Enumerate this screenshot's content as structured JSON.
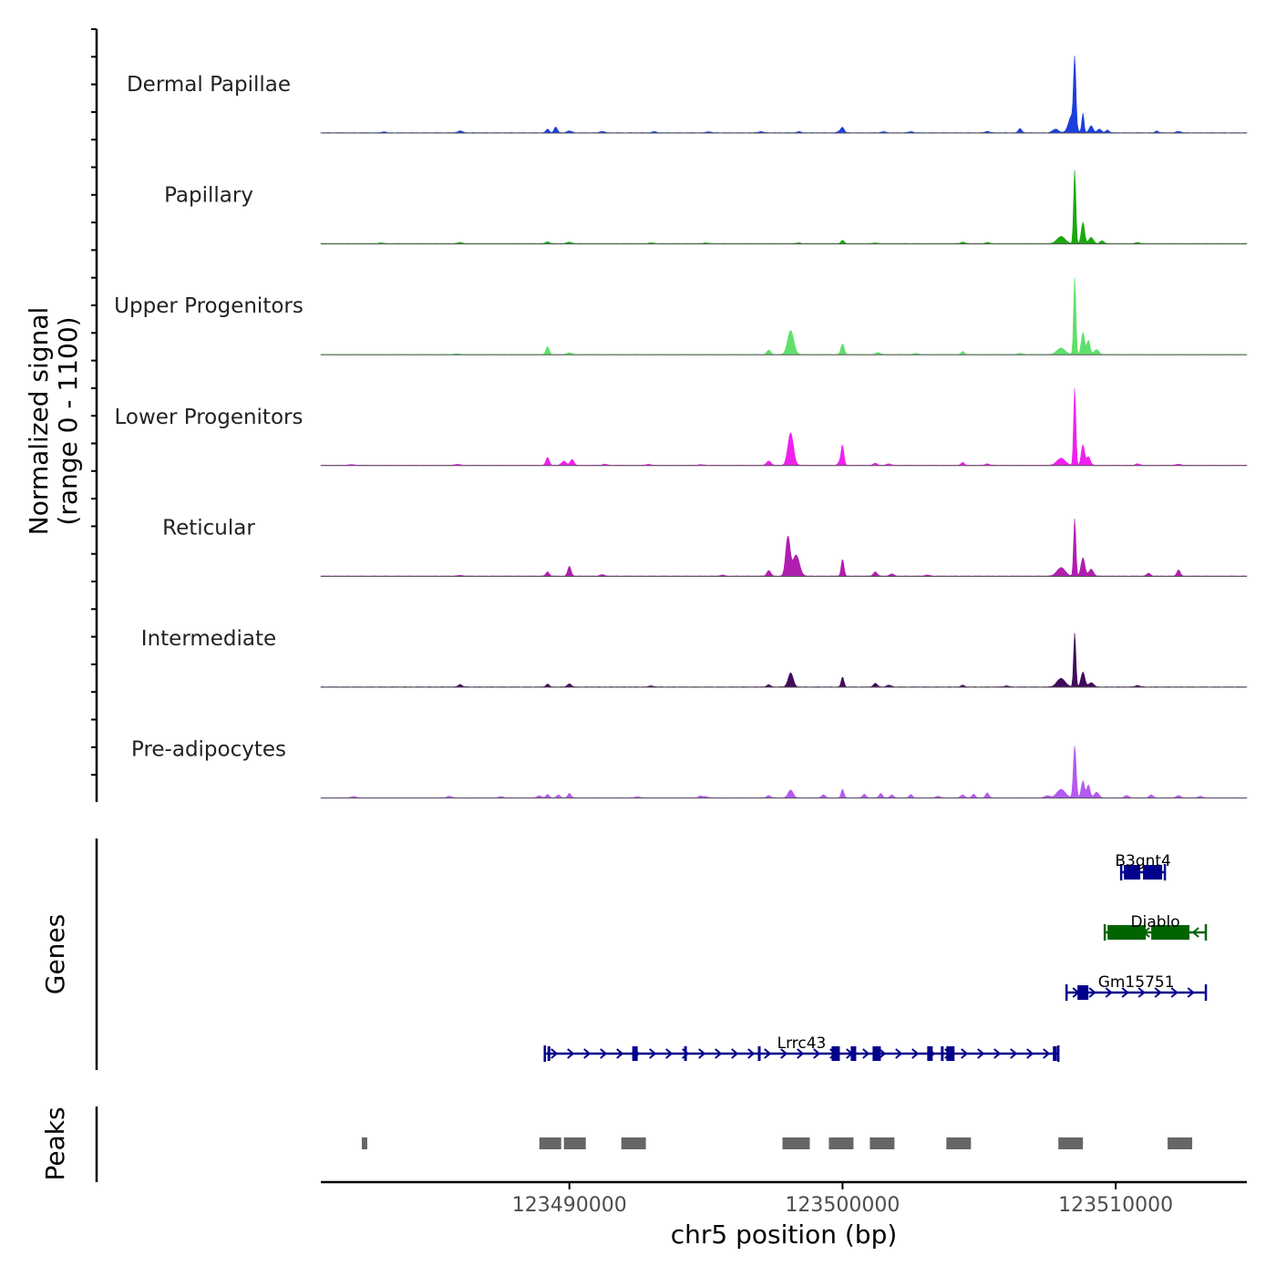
{
  "chart_data": {
    "type": "area",
    "title": "",
    "xlabel": "chr5 position (bp)",
    "ylabel": [
      "Normalized signal",
      "(range 0 - 1100)"
    ],
    "xlim": [
      123480900,
      123514800
    ],
    "ylim": [
      0,
      1100
    ],
    "x_ticks": [
      123490000,
      123500000,
      123510000
    ],
    "x_tick_labels": [
      "123490000",
      "123500000",
      "123510000"
    ],
    "series": [
      {
        "name": "Dermal Papillae",
        "color": "#1c3fdb",
        "peaks": [
          [
            123483200,
            15,
            70
          ],
          [
            123486000,
            25,
            90
          ],
          [
            123489200,
            50,
            60
          ],
          [
            123489500,
            80,
            60
          ],
          [
            123490000,
            25,
            90
          ],
          [
            123491200,
            20,
            80
          ],
          [
            123493100,
            15,
            80
          ],
          [
            123495100,
            15,
            80
          ],
          [
            123497000,
            15,
            100
          ],
          [
            123498400,
            15,
            80
          ],
          [
            123499900,
            20,
            80
          ],
          [
            123500000,
            70,
            60
          ],
          [
            123501500,
            15,
            80
          ],
          [
            123502500,
            15,
            90
          ],
          [
            123505300,
            20,
            80
          ],
          [
            123506500,
            60,
            60
          ],
          [
            123507800,
            50,
            110
          ],
          [
            123508500,
            950,
            40
          ],
          [
            123508400,
            250,
            120
          ],
          [
            123508800,
            280,
            40
          ],
          [
            123509100,
            100,
            70
          ],
          [
            123509400,
            50,
            80
          ],
          [
            123509700,
            40,
            60
          ],
          [
            123511500,
            25,
            60
          ],
          [
            123512300,
            20,
            80
          ]
        ]
      },
      {
        "name": "Papillary",
        "color": "#1aa80f",
        "peaks": [
          [
            123483100,
            10,
            80
          ],
          [
            123486000,
            15,
            90
          ],
          [
            123489200,
            25,
            70
          ],
          [
            123490000,
            20,
            90
          ],
          [
            123493000,
            10,
            80
          ],
          [
            123495000,
            10,
            90
          ],
          [
            123498400,
            10,
            80
          ],
          [
            123500000,
            45,
            60
          ],
          [
            123501200,
            10,
            80
          ],
          [
            123504400,
            20,
            80
          ],
          [
            123505300,
            15,
            80
          ],
          [
            123508000,
            100,
            150
          ],
          [
            123508500,
            1050,
            40
          ],
          [
            123508800,
            300,
            60
          ],
          [
            123509100,
            90,
            80
          ],
          [
            123509500,
            40,
            70
          ],
          [
            123510800,
            15,
            80
          ]
        ]
      },
      {
        "name": "Upper Progenitors",
        "color": "#5fe06b",
        "peaks": [
          [
            123485900,
            10,
            90
          ],
          [
            123489200,
            110,
            60
          ],
          [
            123490000,
            25,
            80
          ],
          [
            123497300,
            60,
            70
          ],
          [
            123498100,
            340,
            110
          ],
          [
            123500000,
            150,
            60
          ],
          [
            123501300,
            25,
            80
          ],
          [
            123502700,
            15,
            80
          ],
          [
            123504400,
            40,
            60
          ],
          [
            123506500,
            15,
            80
          ],
          [
            123508000,
            90,
            150
          ],
          [
            123508500,
            1100,
            40
          ],
          [
            123508800,
            310,
            60
          ],
          [
            123509000,
            200,
            60
          ],
          [
            123509300,
            70,
            80
          ]
        ]
      },
      {
        "name": "Lower Progenitors",
        "color": "#f020f0",
        "peaks": [
          [
            123482000,
            10,
            100
          ],
          [
            123485900,
            15,
            90
          ],
          [
            123489200,
            110,
            60
          ],
          [
            123489800,
            60,
            80
          ],
          [
            123490100,
            80,
            70
          ],
          [
            123491300,
            15,
            90
          ],
          [
            123492900,
            15,
            80
          ],
          [
            123494800,
            10,
            90
          ],
          [
            123497300,
            60,
            80
          ],
          [
            123498100,
            460,
            100
          ],
          [
            123499900,
            50,
            60
          ],
          [
            123500000,
            280,
            50
          ],
          [
            123501200,
            30,
            70
          ],
          [
            123501700,
            20,
            80
          ],
          [
            123504400,
            40,
            60
          ],
          [
            123505300,
            20,
            80
          ],
          [
            123508000,
            100,
            150
          ],
          [
            123508500,
            1100,
            40
          ],
          [
            123508800,
            290,
            60
          ],
          [
            123509000,
            120,
            70
          ],
          [
            123510800,
            20,
            80
          ],
          [
            123512300,
            15,
            90
          ]
        ]
      },
      {
        "name": "Reticular",
        "color": "#b01eb0",
        "peaks": [
          [
            123486000,
            10,
            100
          ],
          [
            123489200,
            60,
            60
          ],
          [
            123490000,
            140,
            60
          ],
          [
            123491200,
            20,
            80
          ],
          [
            123495600,
            15,
            80
          ],
          [
            123497300,
            80,
            70
          ],
          [
            123498000,
            560,
            80
          ],
          [
            123498300,
            300,
            120
          ],
          [
            123500000,
            240,
            50
          ],
          [
            123501200,
            60,
            70
          ],
          [
            123501800,
            30,
            80
          ],
          [
            123503100,
            15,
            90
          ],
          [
            123508000,
            120,
            150
          ],
          [
            123508500,
            820,
            40
          ],
          [
            123508800,
            260,
            70
          ],
          [
            123509100,
            100,
            80
          ],
          [
            123511200,
            40,
            70
          ],
          [
            123512300,
            90,
            60
          ]
        ]
      },
      {
        "name": "Intermediate",
        "color": "#420a5c",
        "peaks": [
          [
            123486000,
            35,
            70
          ],
          [
            123489200,
            40,
            60
          ],
          [
            123490000,
            45,
            70
          ],
          [
            123493000,
            15,
            80
          ],
          [
            123497300,
            30,
            70
          ],
          [
            123498100,
            200,
            90
          ],
          [
            123500000,
            140,
            50
          ],
          [
            123501200,
            50,
            70
          ],
          [
            123501700,
            25,
            80
          ],
          [
            123504400,
            25,
            60
          ],
          [
            123506000,
            15,
            80
          ],
          [
            123508000,
            120,
            150
          ],
          [
            123508500,
            770,
            40
          ],
          [
            123508800,
            210,
            70
          ],
          [
            123509100,
            60,
            90
          ],
          [
            123510800,
            20,
            80
          ]
        ]
      },
      {
        "name": "Pre-adipocytes",
        "color": "#b35af2",
        "peaks": [
          [
            123482100,
            15,
            100
          ],
          [
            123485600,
            20,
            90
          ],
          [
            123487500,
            15,
            80
          ],
          [
            123488900,
            30,
            70
          ],
          [
            123489200,
            45,
            60
          ],
          [
            123489600,
            40,
            60
          ],
          [
            123490000,
            60,
            60
          ],
          [
            123492500,
            15,
            80
          ],
          [
            123494800,
            25,
            70
          ],
          [
            123495000,
            15,
            80
          ],
          [
            123497300,
            30,
            70
          ],
          [
            123498100,
            110,
            90
          ],
          [
            123499300,
            40,
            70
          ],
          [
            123500000,
            120,
            50
          ],
          [
            123500800,
            50,
            60
          ],
          [
            123501400,
            60,
            60
          ],
          [
            123501800,
            40,
            60
          ],
          [
            123502500,
            45,
            60
          ],
          [
            123503500,
            20,
            80
          ],
          [
            123504400,
            40,
            70
          ],
          [
            123504800,
            50,
            60
          ],
          [
            123505300,
            70,
            60
          ],
          [
            123507500,
            30,
            90
          ],
          [
            123508000,
            120,
            150
          ],
          [
            123508500,
            740,
            50
          ],
          [
            123508800,
            240,
            60
          ],
          [
            123509000,
            180,
            60
          ],
          [
            123509300,
            80,
            80
          ],
          [
            123510400,
            30,
            80
          ],
          [
            123511300,
            40,
            70
          ],
          [
            123512300,
            30,
            80
          ],
          [
            123513100,
            20,
            80
          ]
        ]
      }
    ],
    "genes": [
      {
        "name": "B3gnt4",
        "strand": "-",
        "color": "#00008b",
        "start": 123510200,
        "end": 123511800,
        "exons": [
          [
            123510300,
            123510900
          ],
          [
            123511000,
            123511700
          ]
        ]
      },
      {
        "name": "Diablo",
        "strand": "-",
        "color": "#006400",
        "start": 123509600,
        "end": 123513300,
        "exons": [
          [
            123509700,
            123511100
          ],
          [
            123511300,
            123512700
          ]
        ]
      },
      {
        "name": "Gm15751",
        "strand": "+",
        "color": "#00008b",
        "start": 123508200,
        "end": 123513300,
        "exons": [
          [
            123508600,
            123509000
          ]
        ]
      },
      {
        "name": "Lrrc43",
        "strand": "+",
        "color": "#00008b",
        "start": 123489100,
        "end": 123507900,
        "exons": [
          [
            123489200,
            123489300
          ],
          [
            123492300,
            123492500
          ],
          [
            123494200,
            123494300
          ],
          [
            123496900,
            123497000
          ],
          [
            123499600,
            123499900
          ],
          [
            123500300,
            123500500
          ],
          [
            123501100,
            123501400
          ],
          [
            123503100,
            123503300
          ],
          [
            123503600,
            123503700
          ],
          [
            123503800,
            123504100
          ],
          [
            123507700,
            123507850
          ]
        ]
      }
    ],
    "peaks_track": [
      [
        123482400,
        123482600
      ],
      [
        123488900,
        123489700
      ],
      [
        123489800,
        123490600
      ],
      [
        123491900,
        123492800
      ],
      [
        123497800,
        123498800
      ],
      [
        123499500,
        123500400
      ],
      [
        123501000,
        123501900
      ],
      [
        123503800,
        123504700
      ],
      [
        123507900,
        123508800
      ],
      [
        123511900,
        123512800
      ]
    ],
    "track_labels": {
      "genes": "Genes",
      "peaks": "Peaks"
    }
  }
}
